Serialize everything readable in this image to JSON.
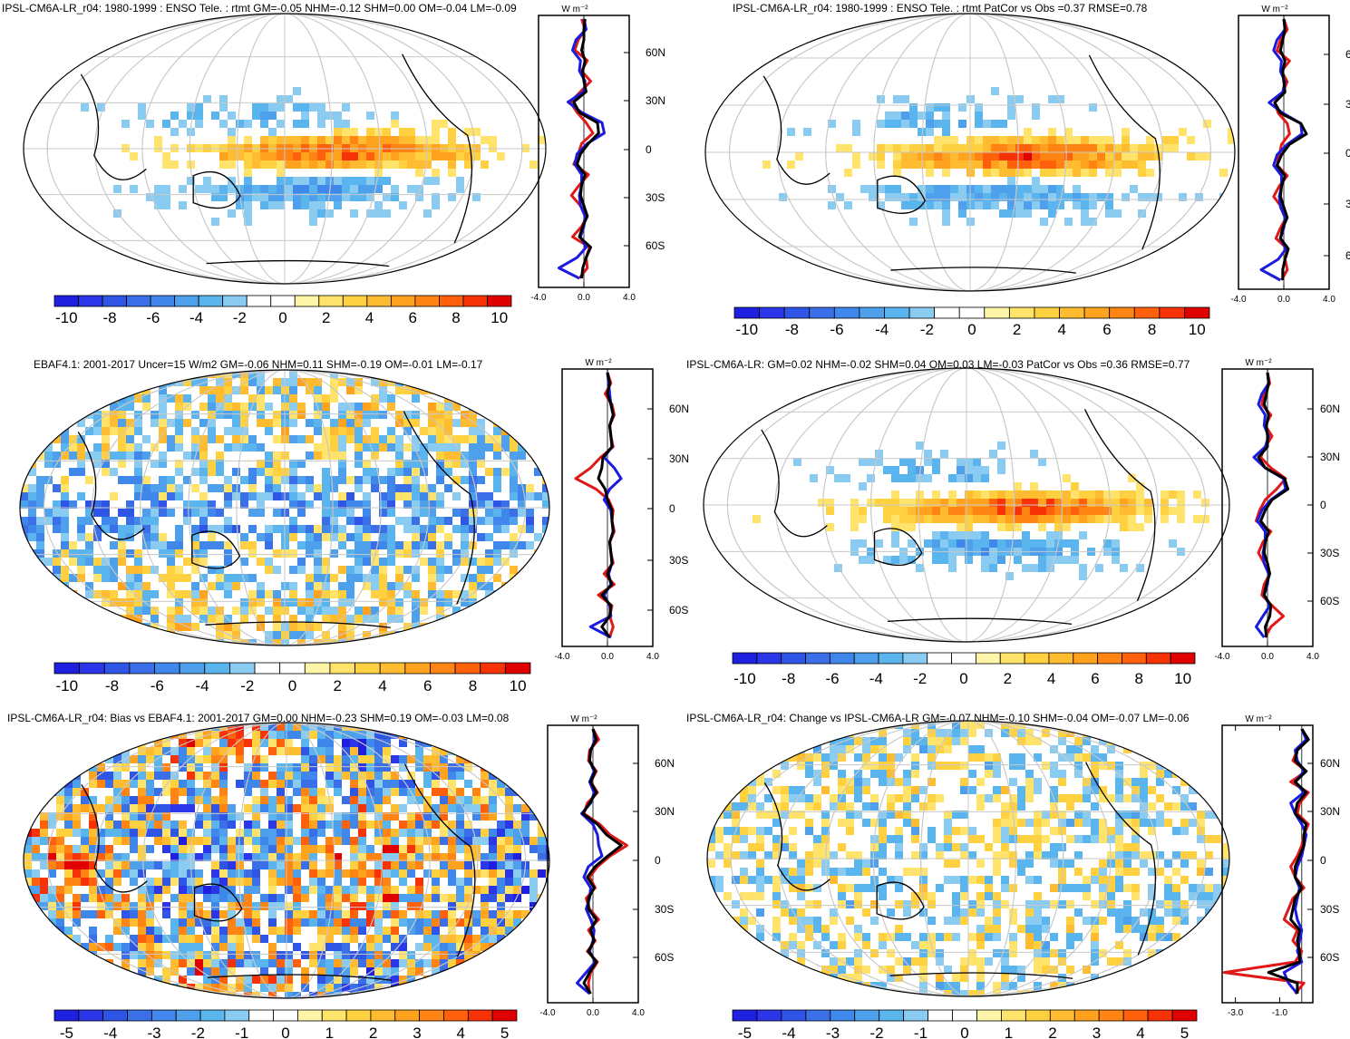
{
  "colors": {
    "colorbar": [
      "#1f1fe0",
      "#2a36e8",
      "#2f55e6",
      "#3a6fe8",
      "#3f87ea",
      "#4ea0ec",
      "#5ab4ee",
      "#8acbf2",
      "#ffffff",
      "#ffffff",
      "#fff5a8",
      "#ffe36a",
      "#ffd040",
      "#ffbc30",
      "#ffa21e",
      "#ff8414",
      "#ff600c",
      "#f63206",
      "#e00000"
    ],
    "line_obs": "#e01818",
    "line_model": "#1a1ae0",
    "line_diff": "#000000",
    "grid": "#c8c8c8"
  },
  "chart_data": [
    {
      "type": "heatmap",
      "title": "IPSL-CM6A-LR_r04: 1980-1999 : ENSO Tele. : rtmt GM=-0.05 NHM=-0.12 SHM=0.00 OM=-0.04 LM=-0.09",
      "colorbar_ticks": [
        "-10",
        "-8",
        "-6",
        "-4",
        "-2",
        "0",
        "2",
        "4",
        "6",
        "8",
        "10"
      ],
      "lat_ticks": [
        "60N",
        "30N",
        "0",
        "30S",
        "60S"
      ],
      "profile": {
        "xlabel_ticks": [
          "-4.0",
          "0.0",
          "4.0"
        ],
        "unit": "W m⁻²",
        "series": [
          {
            "color_key": "line_obs",
            "values": [
              -0.2,
              0.1,
              -0.5,
              -0.8,
              0.3,
              -0.2,
              0.6,
              -0.3,
              -1.2,
              -0.6,
              0.2,
              0.8,
              -0.2,
              -0.5,
              -0.9,
              0.4,
              -0.4,
              -1.1,
              -0.3,
              0.3,
              -0.2,
              -1.0,
              0.5,
              0.2,
              0.3,
              -0.4
            ]
          },
          {
            "color_key": "line_model",
            "values": [
              0.0,
              0.2,
              -0.7,
              -1.0,
              -0.3,
              -0.4,
              0.1,
              0.0,
              -1.4,
              -0.2,
              1.6,
              1.8,
              0.3,
              -0.6,
              -0.8,
              -0.2,
              -0.2,
              -0.4,
              -0.3,
              0.1,
              0.0,
              -0.3,
              0.2,
              -0.6,
              -2.2,
              -0.4
            ]
          },
          {
            "color_key": "line_diff",
            "values": [
              0.1,
              0.0,
              0.0,
              -0.2,
              0.1,
              -0.1,
              0.0,
              0.2,
              -0.9,
              -0.4,
              1.2,
              1.3,
              0.4,
              -0.3,
              -0.6,
              0.1,
              -0.2,
              -0.3,
              0.0,
              0.3,
              -0.1,
              -0.4,
              0.6,
              0.2,
              -0.1,
              -0.2
            ]
          }
        ]
      }
    },
    {
      "type": "heatmap",
      "title": "IPSL-CM6A-LR_r04: 1980-1999 : ENSO Tele. : rtmt PatCor vs Obs =0.37 RMSE=0.78",
      "colorbar_ticks": [
        "-10",
        "-8",
        "-6",
        "-4",
        "-2",
        "0",
        "2",
        "4",
        "6",
        "8",
        "10"
      ],
      "lat_ticks": [
        "6",
        "3",
        "0",
        "3",
        "6"
      ],
      "profile": {
        "xlabel_ticks": [
          "-4.0",
          "0.0",
          "4.0"
        ],
        "unit": "W m⁻²",
        "series": [
          {
            "color_key": "line_obs",
            "values": [
              0.0,
              0.3,
              -0.3,
              -0.6,
              0.5,
              -0.2,
              0.3,
              -0.1,
              -0.8,
              -0.5,
              0.3,
              0.5,
              -0.2,
              -0.4,
              -0.6,
              0.3,
              -0.4,
              -0.9,
              -0.2,
              0.2,
              -0.3,
              -0.7,
              0.3,
              0.1,
              0.3,
              -0.2
            ]
          },
          {
            "color_key": "line_model",
            "values": [
              0.0,
              0.1,
              -0.6,
              -0.9,
              -0.2,
              -0.3,
              0.1,
              -0.1,
              -1.3,
              -0.1,
              1.5,
              1.6,
              0.3,
              -0.6,
              -0.9,
              -0.2,
              -0.2,
              -0.4,
              -0.3,
              0.1,
              0.0,
              -0.3,
              0.2,
              -0.5,
              -2.0,
              -0.3
            ]
          },
          {
            "color_key": "line_diff",
            "values": [
              0.0,
              0.1,
              -0.1,
              -0.3,
              0.1,
              -0.1,
              0.0,
              0.1,
              -0.8,
              -0.3,
              1.5,
              2.0,
              0.5,
              -0.2,
              -0.6,
              0.1,
              -0.2,
              -0.3,
              0.0,
              0.3,
              -0.1,
              -0.3,
              0.4,
              0.1,
              -0.1,
              -0.1
            ]
          }
        ]
      }
    },
    {
      "type": "heatmap",
      "title": "EBAF4.1: 2001-2017 Uncer=15 W/m2 GM=-0.06 NHM=0.11 SHM=-0.19 OM=-0.01 LM=-0.17",
      "colorbar_ticks": [
        "-10",
        "-8",
        "-6",
        "-4",
        "-2",
        "0",
        "2",
        "4",
        "6",
        "8",
        "10"
      ],
      "lat_ticks": [
        "60N",
        "30N",
        "0",
        "30S",
        "60S"
      ],
      "profile": {
        "xlabel_ticks": [
          "-4.0",
          "0.0",
          "4.0"
        ],
        "unit": "W m⁻²",
        "series": [
          {
            "color_key": "line_obs",
            "values": [
              0.0,
              0.3,
              -0.2,
              0.4,
              0.6,
              0.2,
              0.3,
              0.5,
              -0.6,
              -1.5,
              -2.8,
              -1.0,
              0.1,
              0.5,
              0.4,
              0.6,
              0.2,
              0.3,
              0.5,
              -0.3,
              0.6,
              -0.8,
              0.4,
              0.2,
              0.5,
              0.2
            ]
          },
          {
            "color_key": "line_model",
            "values": [
              0.0,
              0.1,
              0.2,
              0.3,
              0.5,
              0.2,
              0.3,
              0.4,
              -0.3,
              0.6,
              1.2,
              0.2,
              -0.3,
              0.3,
              0.4,
              0.5,
              0.2,
              0.3,
              0.4,
              0.1,
              0.3,
              -0.3,
              0.2,
              0.3,
              -1.5,
              0.3
            ]
          },
          {
            "color_key": "line_diff",
            "values": [
              0.0,
              0.2,
              0.0,
              0.3,
              0.5,
              0.2,
              0.3,
              0.4,
              -0.4,
              -0.5,
              -0.8,
              -0.2,
              0.0,
              0.4,
              0.4,
              0.5,
              0.2,
              0.3,
              0.4,
              0.0,
              0.4,
              -0.5,
              0.3,
              0.2,
              -0.5,
              0.2
            ]
          }
        ]
      }
    },
    {
      "type": "heatmap",
      "title": "IPSL-CM6A-LR: GM=0.02 NHM=-0.02 SHM=0.04 OM=0.03 LM=-0.03 PatCor vs Obs =0.36 RMSE=0.77",
      "colorbar_ticks": [
        "-10",
        "-8",
        "-6",
        "-4",
        "-2",
        "0",
        "2",
        "4",
        "6",
        "8",
        "10"
      ],
      "lat_ticks": [
        "60N",
        "30N",
        "0",
        "30S",
        "60S"
      ],
      "profile": {
        "xlabel_ticks": [
          "-4.0",
          "0.0",
          "4.0"
        ],
        "unit": "W m⁻²",
        "series": [
          {
            "color_key": "line_obs",
            "values": [
              0.0,
              0.2,
              -0.3,
              -0.5,
              0.3,
              -0.2,
              0.4,
              -0.2,
              -0.6,
              0.3,
              1.6,
              0.8,
              -0.2,
              -0.7,
              -1.0,
              0.3,
              -0.4,
              -0.8,
              -0.3,
              0.2,
              -0.3,
              -0.5,
              0.4,
              1.4,
              0.3,
              -0.2
            ]
          },
          {
            "color_key": "line_model",
            "values": [
              0.0,
              0.1,
              -0.5,
              -0.8,
              -0.2,
              -0.3,
              0.1,
              -0.2,
              -1.2,
              -0.2,
              1.4,
              1.6,
              0.3,
              -0.5,
              -0.9,
              -0.2,
              -0.2,
              -0.4,
              -0.3,
              0.1,
              0.0,
              -0.3,
              0.2,
              -0.4,
              -1.0,
              -0.3
            ]
          },
          {
            "color_key": "line_diff",
            "values": [
              0.0,
              0.1,
              -0.1,
              -0.3,
              0.1,
              -0.1,
              0.0,
              0.0,
              -0.8,
              -0.2,
              1.5,
              1.8,
              0.4,
              -0.2,
              -0.6,
              0.1,
              -0.2,
              -0.3,
              0.0,
              0.2,
              -0.1,
              -0.3,
              0.3,
              0.2,
              -0.2,
              -0.1
            ]
          }
        ]
      }
    },
    {
      "type": "heatmap",
      "title": "IPSL-CM6A-LR_r04: Bias vs EBAF4.1: 2001-2017 GM=0.00 NHM=-0.23 SHM=0.19 OM=-0.03 LM=0.08",
      "colorbar_ticks": [
        "-5",
        "-4",
        "-3",
        "-2",
        "-1",
        "0",
        "1",
        "2",
        "3",
        "4",
        "5"
      ],
      "lat_ticks": [
        "60N",
        "30N",
        "0",
        "30S",
        "60S"
      ],
      "profile": {
        "xlabel_ticks": [
          "-4.0",
          "0.0",
          "4.0"
        ],
        "unit": "W m⁻²",
        "series": [
          {
            "color_key": "line_obs",
            "values": [
              0.0,
              0.5,
              -0.3,
              -0.4,
              0.3,
              -0.2,
              0.4,
              -0.5,
              -0.8,
              0.6,
              1.5,
              3.0,
              1.5,
              0.4,
              -0.3,
              0.2,
              -0.6,
              -0.3,
              0.5,
              -0.4,
              0.2,
              -0.5,
              0.4,
              -0.2,
              -0.4,
              -0.3
            ]
          },
          {
            "color_key": "line_model",
            "values": [
              0.0,
              0.2,
              -0.2,
              -0.3,
              0.1,
              -0.3,
              0.1,
              -0.2,
              -1.0,
              0.0,
              0.4,
              0.5,
              0.8,
              -0.4,
              -0.8,
              -0.2,
              -0.3,
              -0.6,
              -0.2,
              0.1,
              0.0,
              -0.3,
              0.2,
              -0.6,
              -1.4,
              -0.3
            ]
          },
          {
            "color_key": "line_diff",
            "values": [
              0.0,
              0.3,
              -0.2,
              -0.3,
              0.2,
              -0.2,
              0.3,
              -0.3,
              -0.9,
              0.4,
              1.2,
              2.5,
              1.3,
              0.2,
              -0.5,
              0.1,
              -0.4,
              -0.4,
              0.3,
              -0.2,
              0.1,
              -0.4,
              0.3,
              -0.3,
              -0.8,
              -0.2
            ]
          }
        ]
      }
    },
    {
      "type": "heatmap",
      "title": "IPSL-CM6A-LR_r04: Change vs IPSL-CM6A-LR GM=-0.07 NHM=-0.10 SHM=-0.04 OM=-0.07 LM=-0.06",
      "colorbar_ticks": [
        "-5",
        "-4",
        "-3",
        "-2",
        "-1",
        "0",
        "1",
        "2",
        "3",
        "4",
        "5"
      ],
      "lat_ticks": [
        "60N",
        "30N",
        "0",
        "30S",
        "60S"
      ],
      "profile": {
        "xlabel_ticks": [
          "-3.0",
          "-1.0"
        ],
        "xticks_values": [
          -3.0,
          -1.0
        ],
        "xrange": [
          -3.6,
          0.5
        ],
        "unit": "W m⁻²",
        "series": [
          {
            "color_key": "line_obs",
            "values": [
              0.0,
              0.3,
              -0.2,
              -0.4,
              0.2,
              -0.5,
              0.3,
              -0.1,
              -0.2,
              0.3,
              0.1,
              0.0,
              -0.2,
              -0.5,
              -0.3,
              0.1,
              -0.4,
              -0.6,
              -0.8,
              -0.2,
              -0.4,
              0.0,
              -0.3,
              -3.5,
              0.1,
              -0.3
            ]
          },
          {
            "color_key": "line_model",
            "values": [
              0.0,
              0.2,
              -0.3,
              -0.2,
              0.1,
              -0.3,
              0.1,
              -0.5,
              -0.3,
              0.0,
              0.2,
              0.1,
              0.0,
              -0.2,
              -0.3,
              -0.1,
              -0.2,
              -0.3,
              -0.2,
              0.0,
              -0.1,
              -0.2,
              0.0,
              -0.8,
              -0.6,
              -0.2
            ]
          },
          {
            "color_key": "line_diff",
            "values": [
              0.0,
              0.3,
              -0.2,
              -0.3,
              0.2,
              -0.3,
              0.2,
              -0.2,
              -0.3,
              0.2,
              0.1,
              0.1,
              -0.1,
              -0.3,
              -0.3,
              0.0,
              -0.3,
              -0.4,
              -0.5,
              -0.1,
              -0.2,
              -0.1,
              -0.1,
              -1.5,
              -0.2,
              -0.2
            ]
          }
        ]
      }
    }
  ]
}
